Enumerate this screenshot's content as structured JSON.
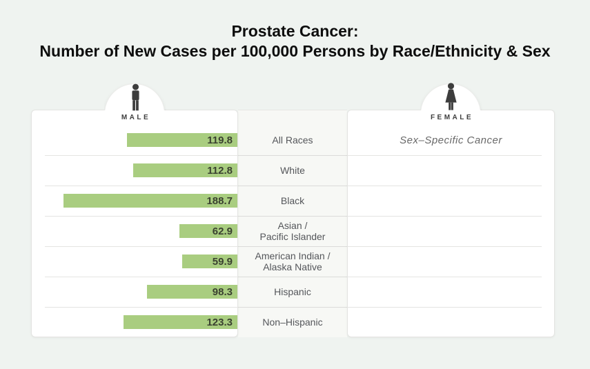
{
  "title": {
    "line1": "Prostate Cancer:",
    "line2": "Number of New Cases per 100,000 Persons by Race/Ethnicity & Sex"
  },
  "panels": {
    "male": {
      "label": "MALE"
    },
    "female": {
      "label": "FEMALE"
    }
  },
  "chart_data": {
    "type": "bar",
    "orientation": "horizontal",
    "title": "Prostate Cancer: Number of New Cases per 100,000 Persons by Race/Ethnicity & Sex",
    "unit": "new cases per 100,000 persons",
    "categories": [
      "All Races",
      "White",
      "Black",
      "Asian /\nPacific Islander",
      "American Indian /\nAlaska Native",
      "Hispanic",
      "Non–Hispanic"
    ],
    "series": [
      {
        "name": "Male",
        "values": [
          119.8,
          112.8,
          188.7,
          62.9,
          59.9,
          98.3,
          123.3
        ]
      },
      {
        "name": "Female",
        "values": [
          null,
          null,
          null,
          null,
          null,
          null,
          null
        ],
        "note": "Sex–Specific Cancer"
      }
    ],
    "xlim": [
      0,
      188.7
    ],
    "bar_color": "#a9cd80",
    "value_label_color": "#3a4130",
    "legend_position": "none",
    "grid": false
  }
}
